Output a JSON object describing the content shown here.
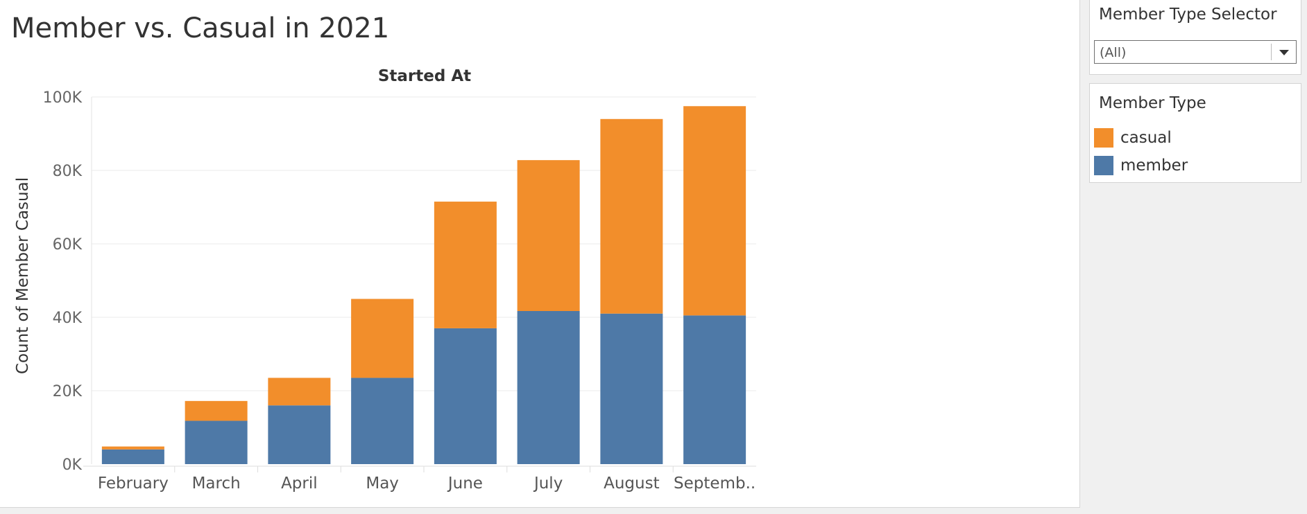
{
  "page": {
    "title": "Member vs. Casual in 2021"
  },
  "filter": {
    "title": "Member Type Selector",
    "selected": "(All)"
  },
  "legend": {
    "title": "Member Type",
    "items": [
      {
        "label": "casual",
        "color": "#f28e2b"
      },
      {
        "label": "member",
        "color": "#4e79a7"
      }
    ]
  },
  "chart_data": {
    "type": "bar",
    "stacked": true,
    "title": "Started At",
    "xlabel": "",
    "ylabel": "Count of Member Casual",
    "categories": [
      "February",
      "March",
      "April",
      "May",
      "June",
      "July",
      "August",
      "Septemb.."
    ],
    "series": [
      {
        "name": "member",
        "color": "#4e79a7",
        "values": [
          4000,
          11800,
          16000,
          23500,
          37000,
          41700,
          41000,
          40500
        ]
      },
      {
        "name": "casual",
        "color": "#f28e2b",
        "values": [
          800,
          5400,
          7500,
          21500,
          34500,
          41100,
          53000,
          57000
        ]
      }
    ],
    "ylim": [
      0,
      100000
    ],
    "yticks": [
      0,
      20000,
      40000,
      60000,
      80000,
      100000
    ],
    "ytick_labels": [
      "0K",
      "20K",
      "40K",
      "60K",
      "80K",
      "100K"
    ],
    "grid": true,
    "legend_position": "right"
  }
}
